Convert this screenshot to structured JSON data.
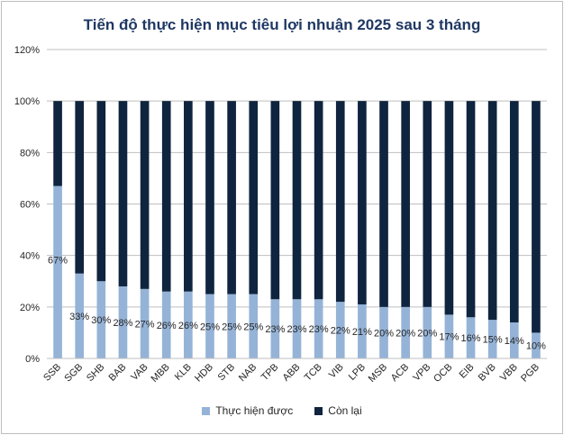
{
  "chart_data": {
    "type": "bar",
    "stacked": true,
    "title": "Tiến độ thực hiện mục tiêu lợi nhuận 2025 sau 3 tháng",
    "categories": [
      "SSB",
      "SGB",
      "SHB",
      "BAB",
      "VAB",
      "MBB",
      "KLB",
      "HDB",
      "STB",
      "NAB",
      "TPB",
      "ABB",
      "TCB",
      "VIB",
      "LPB",
      "MSB",
      "ACB",
      "VPB",
      "OCB",
      "EIB",
      "BVB",
      "VBB",
      "PGB"
    ],
    "series": [
      {
        "name": "Thực hiện được",
        "color": "#95b3d7",
        "values": [
          67,
          33,
          30,
          28,
          27,
          26,
          26,
          25,
          25,
          25,
          23,
          23,
          23,
          22,
          21,
          20,
          20,
          20,
          17,
          16,
          15,
          14,
          10
        ],
        "labels": [
          "67%",
          "33%",
          "30%",
          "28%",
          "27%",
          "26%",
          "26%",
          "25%",
          "25%",
          "25%",
          "23%",
          "23%",
          "23%",
          "22%",
          "21%",
          "20%",
          "20%",
          "20%",
          "17%",
          "16%",
          "15%",
          "14%",
          "10%"
        ]
      },
      {
        "name": "Còn lại",
        "color": "#0f243e",
        "values": [
          33,
          67,
          70,
          72,
          73,
          74,
          74,
          75,
          75,
          75,
          77,
          77,
          77,
          78,
          79,
          80,
          80,
          80,
          83,
          84,
          85,
          86,
          90
        ]
      }
    ],
    "y_ticks": [
      "0%",
      "20%",
      "40%",
      "60%",
      "80%",
      "100%",
      "120%"
    ],
    "ylim": [
      0,
      120
    ],
    "grid": true,
    "legend_position": "bottom"
  }
}
